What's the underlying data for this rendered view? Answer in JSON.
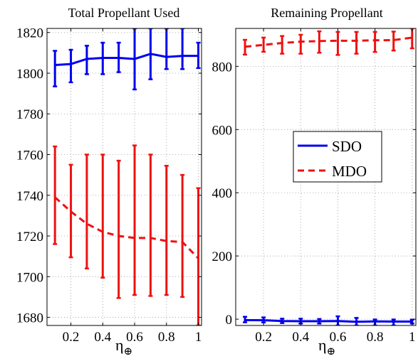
{
  "chart_data": [
    {
      "type": "line",
      "title": "Total Propellant Used",
      "xlabel": "η",
      "xlabel_sub": "⊕",
      "ylabel": "",
      "xlim": [
        0.05,
        1.02
      ],
      "ylim": [
        1676,
        1822
      ],
      "xticks": [
        0.2,
        0.4,
        0.6,
        0.8,
        1
      ],
      "xtick_labels": [
        "0.2",
        "0.4",
        "0.6",
        "0.8",
        "1"
      ],
      "yticks": [
        1680,
        1700,
        1720,
        1740,
        1760,
        1780,
        1800,
        1820
      ],
      "ytick_labels": [
        "1680",
        "1700",
        "1720",
        "1740",
        "1760",
        "1780",
        "1800",
        "1820"
      ],
      "grid": true,
      "x": [
        0.1,
        0.2,
        0.3,
        0.4,
        0.5,
        0.6,
        0.7,
        0.8,
        0.9,
        1.0
      ],
      "series": [
        {
          "name": "SDO",
          "color": "#0000ee",
          "style": "solid",
          "values": [
            1804,
            1804.5,
            1807,
            1807.5,
            1807.5,
            1807,
            1809.5,
            1808,
            1808.5,
            1808.5
          ],
          "err_low": [
            1793.5,
            1795.5,
            1799.5,
            1799.5,
            1800.5,
            1792,
            1797,
            1802,
            1802,
            1802.5
          ],
          "err_high": [
            1811,
            1811.5,
            1813.5,
            1815,
            1815,
            1822,
            1822,
            1822,
            1822,
            1815
          ]
        },
        {
          "name": "MDO",
          "color": "#ee1111",
          "style": "dashed",
          "values": [
            1739,
            1732,
            1726,
            1722,
            1720,
            1719,
            1719,
            1717.5,
            1717,
            1709
          ],
          "err_low": [
            1716,
            1709.5,
            1704,
            1699.5,
            1689.5,
            1691,
            1690.5,
            1691,
            1690,
            1676
          ],
          "err_high": [
            1764,
            1755,
            1760,
            1760,
            1757,
            1764.5,
            1760,
            1754.5,
            1750,
            1743.5
          ]
        }
      ]
    },
    {
      "type": "line",
      "title": "Remaining Propellant",
      "xlabel": "η",
      "xlabel_sub": "⊕",
      "ylabel": "",
      "xlim": [
        0.05,
        1.02
      ],
      "ylim": [
        -20,
        920
      ],
      "xticks": [
        0.2,
        0.4,
        0.6,
        0.8,
        1
      ],
      "xtick_labels": [
        "0.2",
        "0.4",
        "0.6",
        "0.8",
        "1"
      ],
      "yticks": [
        0,
        200,
        400,
        600,
        800
      ],
      "ytick_labels": [
        "0",
        "200",
        "400",
        "600",
        "800"
      ],
      "grid": true,
      "legend": "center",
      "x": [
        0.1,
        0.2,
        0.3,
        0.4,
        0.5,
        0.6,
        0.7,
        0.8,
        0.9,
        1.0
      ],
      "series": [
        {
          "name": "SDO",
          "color": "#0000ee",
          "style": "solid",
          "values": [
            -3,
            -3.5,
            -6,
            -6.5,
            -6.5,
            -6,
            -8.5,
            -7,
            -7.5,
            -7.5
          ],
          "err_low": [
            -10,
            -10.5,
            -12.5,
            -14,
            -14,
            -20,
            -20,
            -20,
            -20,
            -14
          ],
          "err_high": [
            7.5,
            5.5,
            1.5,
            1.5,
            0.5,
            9,
            4,
            -1,
            -1,
            -1.5
          ]
        },
        {
          "name": "MDO",
          "color": "#ee1111",
          "style": "dashed",
          "values": [
            862,
            868,
            874,
            878,
            880,
            881,
            881,
            882.5,
            883,
            891
          ],
          "err_low": [
            837,
            846,
            840,
            840,
            843,
            836,
            840,
            845.5,
            850,
            857
          ],
          "err_high": [
            884,
            891,
            896,
            900,
            911,
            909,
            909,
            909,
            910,
            920
          ]
        }
      ]
    }
  ]
}
